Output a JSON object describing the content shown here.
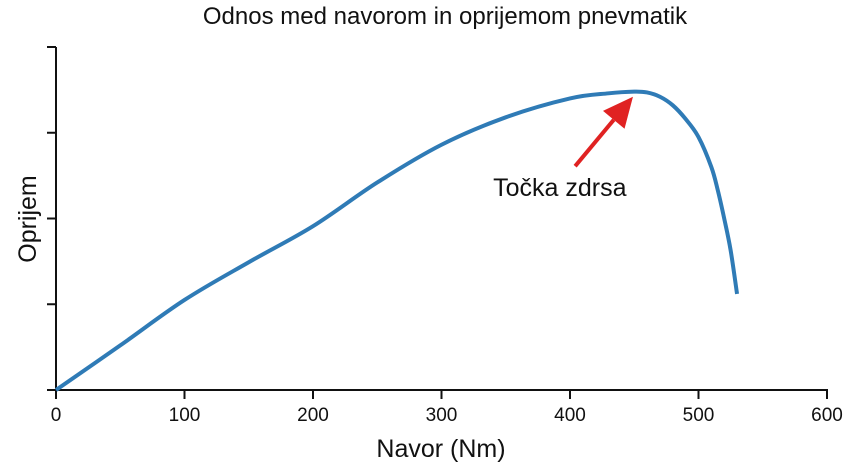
{
  "chart_data": {
    "type": "line",
    "title": "Odnos med navorom in oprijemom pnevmatik",
    "xlabel": "Navor (Nm)",
    "ylabel": "Oprijem",
    "xlim": [
      0,
      600
    ],
    "ylim": [
      0,
      4
    ],
    "x_ticks": [
      0,
      100,
      200,
      300,
      400,
      500,
      600
    ],
    "x_tick_labels": [
      "0",
      "100",
      "200",
      "300",
      "400",
      "500",
      "600"
    ],
    "y_ticks": [
      0,
      1,
      2,
      3,
      4
    ],
    "y_tick_labels_shown": false,
    "grid": false,
    "series": [
      {
        "color": "#2f7bb6",
        "x": [
          0,
          50,
          100,
          150,
          200,
          250,
          300,
          350,
          400,
          430,
          450,
          460,
          470,
          480,
          490,
          500,
          510,
          515,
          520,
          525,
          530
        ],
        "y": [
          0,
          0.52,
          1.05,
          1.49,
          1.91,
          2.42,
          2.86,
          3.18,
          3.4,
          3.46,
          3.48,
          3.47,
          3.42,
          3.32,
          3.16,
          2.95,
          2.6,
          2.33,
          2.0,
          1.63,
          1.12
        ]
      }
    ],
    "annotations": [
      {
        "text": "Točka zdrsa",
        "color": "#e02222",
        "arrow_from": [
          404,
          2.61
        ],
        "arrow_to": [
          449,
          3.42
        ]
      }
    ]
  }
}
